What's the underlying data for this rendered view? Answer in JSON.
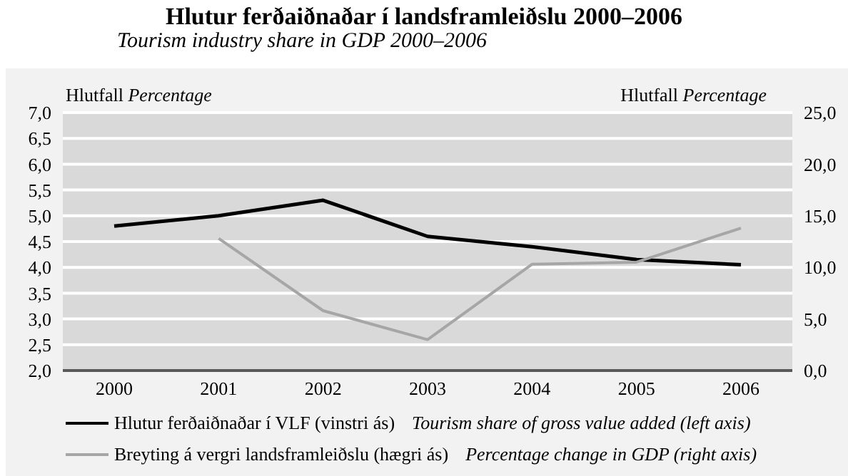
{
  "chart_data": {
    "type": "line",
    "title": "Hlutur ferðaiðnaðar í landsframleiðslu 2000–2006",
    "subtitle": "Tourism industry share in GDP 2000–2006",
    "ylabel": "Hlutfall Percentage",
    "y2label": "Hlutfall Percentage",
    "categories": [
      "2000",
      "2001",
      "2002",
      "2003",
      "2004",
      "2005",
      "2006"
    ],
    "series": [
      {
        "name": "Hlutur ferðaiðnaðar í VLF (vinstri ás)",
        "color": "#000000",
        "values": [
          4.8,
          5.0,
          5.3,
          4.6,
          4.4,
          4.15,
          4.05
        ]
      },
      {
        "name": "Breyting á vergri landsframleiðslu (hægri ás)",
        "color": "#a6a6a6",
        "axis": "y2",
        "values": [
          null,
          12.8,
          5.8,
          3.0,
          10.3,
          10.5,
          13.8
        ]
      }
    ],
    "annotations": [
      "Tourism share of gross value added (left axis)",
      "Percentage change in GDP (right axis)"
    ],
    "ylim": [
      2,
      7
    ],
    "yticks": [
      {
        "value": 2,
        "label": "2,0"
      },
      {
        "value": 2.5,
        "label": "2,5"
      },
      {
        "value": 3,
        "label": "3,0"
      },
      {
        "value": 3.5,
        "label": "3,5"
      },
      {
        "value": 4,
        "label": "4,0"
      },
      {
        "value": 4.5,
        "label": "4,5"
      },
      {
        "value": 5,
        "label": "5,0"
      },
      {
        "value": 5.5,
        "label": "5,5"
      },
      {
        "value": 6,
        "label": "6,0"
      },
      {
        "value": 6.5,
        "label": "6,5"
      },
      {
        "value": 7,
        "label": "7,0"
      }
    ],
    "y2lim": [
      0,
      25
    ],
    "y2ticks": [
      {
        "value": 0,
        "label": "0,0"
      },
      {
        "value": 5,
        "label": "5,0"
      },
      {
        "value": 10,
        "label": "10,0"
      },
      {
        "value": 15,
        "label": "15,0"
      },
      {
        "value": 20,
        "label": "20,0"
      },
      {
        "value": 25,
        "label": "25,0"
      }
    ],
    "grid": "y",
    "legend": "bottom",
    "marker": "none",
    "line_style": "solid"
  }
}
